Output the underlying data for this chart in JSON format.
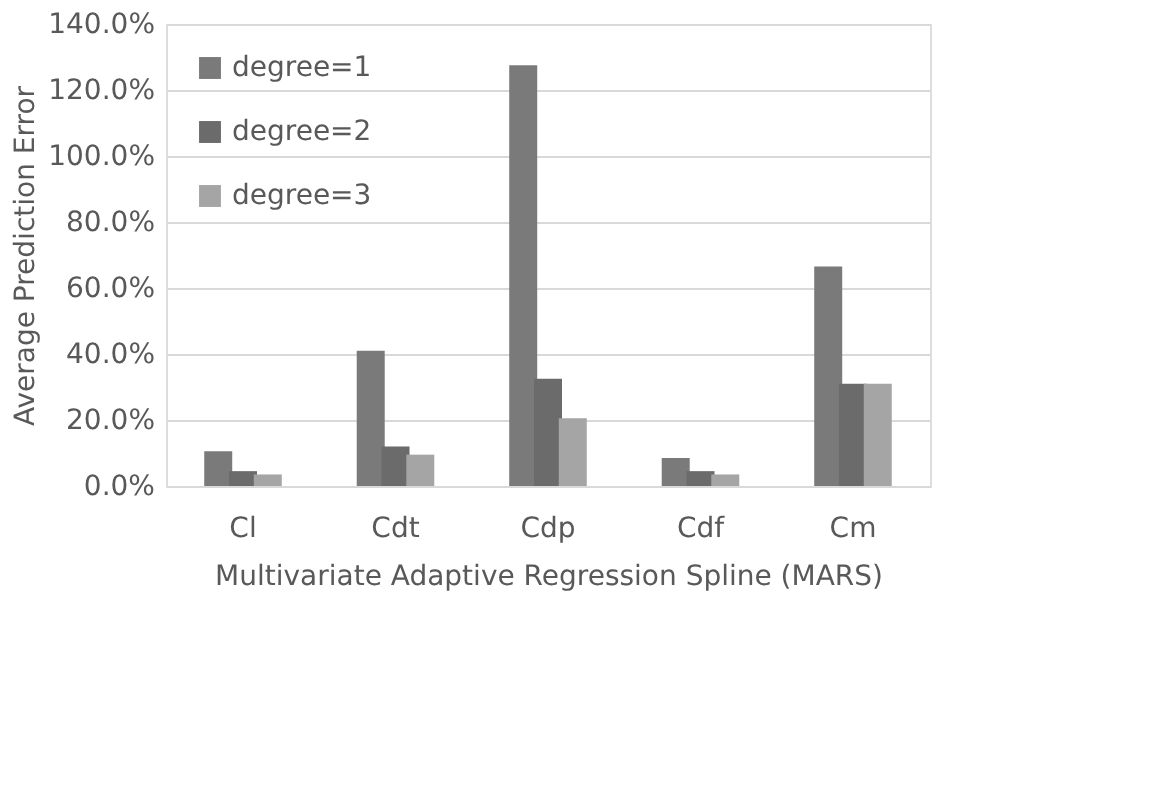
{
  "chart_data": {
    "type": "bar",
    "xlabel": "Multivariate Adaptive Regression Spline (MARS)",
    "ylabel": "Average Prediction Error",
    "categories": [
      "Cl",
      "Cdt",
      "Cdp",
      "Cdf",
      "Cm"
    ],
    "series": [
      {
        "name": "degree=1",
        "color": "#7a7a7a",
        "values": [
          10.5,
          41,
          127.5,
          8.5,
          66.5
        ]
      },
      {
        "name": "degree=2",
        "color": "#6b6b6b",
        "values": [
          4.5,
          12,
          32.5,
          4.5,
          31
        ]
      },
      {
        "name": "degree=3",
        "color": "#a5a5a5",
        "values": [
          3.5,
          9.5,
          20.5,
          3.5,
          31
        ]
      }
    ],
    "ylim": [
      0,
      140
    ],
    "yticks": [
      {
        "value": 0,
        "label": "0.0%"
      },
      {
        "value": 20,
        "label": "20.0%"
      },
      {
        "value": 40,
        "label": "40.0%"
      },
      {
        "value": 60,
        "label": "60.0%"
      },
      {
        "value": 80,
        "label": "80.0%"
      },
      {
        "value": 100,
        "label": "100.0%"
      },
      {
        "value": 120,
        "label": "120.0%"
      },
      {
        "value": 140,
        "label": "140.0%"
      }
    ],
    "grid": "y",
    "legend": "top left"
  }
}
